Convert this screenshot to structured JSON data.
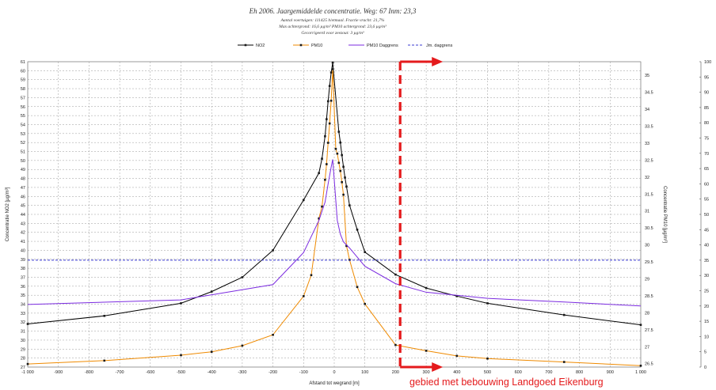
{
  "chart_data": {
    "type": "line",
    "title": "Eh 2006. Jaargemiddelde concentratie. Weg: 67 Inm: 23,3",
    "subtitle_lines": [
      "Aantal voertuigen: 111425 h/etmaal. Fractie vracht: 21,7%",
      "Max achtergrond: 16,6 µg/m³ PM10 achtergrond: 23,6 µg/m³",
      "Gecorrigeerd voor zeezout: 3 µg/m³"
    ],
    "xlabel": "Afstand tot wegrand [m]",
    "ylabel_left": "Concentratie NO2 [µg/m³]",
    "ylabel_right": "Concentratie PM10 [µg/m³]",
    "xlim": [
      -1000,
      1000
    ],
    "ylim_left": [
      27,
      61
    ],
    "ylim_right": [
      26.4,
      35.4
    ],
    "ylim_far_right": [
      0,
      100
    ],
    "x_ticks": [
      "-1 000",
      "-900",
      "-800",
      "-700",
      "-600",
      "-500",
      "-400",
      "-300",
      "-200",
      "-100",
      "0",
      "100",
      "200",
      "300",
      "400",
      "500",
      "600",
      "700",
      "800",
      "900",
      "1 000"
    ],
    "y_ticks_left": [
      "61",
      "60",
      "59",
      "58",
      "57",
      "56",
      "55",
      "54",
      "53",
      "52",
      "51",
      "50",
      "49",
      "48",
      "47",
      "46",
      "45",
      "44",
      "43",
      "42",
      "41",
      "40",
      "39",
      "38",
      "37",
      "36",
      "35",
      "34",
      "33",
      "32",
      "31",
      "30",
      "29",
      "28",
      "27"
    ],
    "y_ticks_right": [
      "35",
      "34.5",
      "34",
      "33.5",
      "33",
      "32.5",
      "32",
      "31.5",
      "31",
      "30.5",
      "30",
      "29.5",
      "29",
      "28.5",
      "28",
      "27.5",
      "27",
      "26.5"
    ],
    "y_ticks_far_right": [
      "100",
      "95",
      "90",
      "85",
      "80",
      "75",
      "70",
      "65",
      "60",
      "55",
      "50",
      "45",
      "40",
      "35",
      "30",
      "25",
      "20",
      "15",
      "10",
      "5",
      "0"
    ],
    "legend": [
      "NO2",
      "PM10",
      "PM10 Daggrens",
      "Jm. daggrens"
    ],
    "legend_position": "top-center",
    "grid": true,
    "colors": {
      "NO2": "#000000",
      "PM10": "#ef8a00",
      "PM10 Daggrens": "#7b2be0",
      "Jm. daggrens": "#3b3bd0",
      "annotation": "#e41a1c"
    },
    "series": [
      {
        "name": "NO2",
        "axis": "left",
        "x": [
          -1000,
          -750,
          -500,
          -400,
          -300,
          -200,
          -100,
          -50,
          -40,
          -30,
          -25,
          -20,
          -15,
          -10,
          -5,
          15,
          20,
          25,
          30,
          35,
          40,
          50,
          75,
          100,
          200,
          300,
          400,
          500,
          750,
          1000
        ],
        "y": [
          31.8,
          32.7,
          34.1,
          35.4,
          37.0,
          40.0,
          45.6,
          48.6,
          50.2,
          52.7,
          54.6,
          56.6,
          58.3,
          59.8,
          60.9,
          53.2,
          52.0,
          50.6,
          49.3,
          48.1,
          47.1,
          45.0,
          42.3,
          39.8,
          37.3,
          35.8,
          34.9,
          34.1,
          32.8,
          31.7
        ]
      },
      {
        "name": "PM10",
        "axis": "right",
        "x": [
          -1000,
          -750,
          -500,
          -400,
          -300,
          -200,
          -100,
          -75,
          -50,
          -40,
          -30,
          -25,
          -20,
          -15,
          -10,
          -5,
          5,
          10,
          15,
          20,
          25,
          30,
          40,
          50,
          75,
          100,
          200,
          300,
          400,
          500,
          750,
          1000
        ],
        "y": [
          26.49,
          26.59,
          26.75,
          26.85,
          27.03,
          27.35,
          28.49,
          29.11,
          30.78,
          31.13,
          31.92,
          32.38,
          33.01,
          33.58,
          34.25,
          35.18,
          32.83,
          32.69,
          32.42,
          32.18,
          31.85,
          31.48,
          29.97,
          29.56,
          28.76,
          28.26,
          27.05,
          26.88,
          26.73,
          26.65,
          26.55,
          26.44
        ]
      },
      {
        "name": "PM10 Daggrens",
        "axis": "far-right",
        "x": [
          -1000,
          -500,
          -200,
          -100,
          -50,
          -30,
          -20,
          -10,
          -5,
          10,
          20,
          30,
          50,
          100,
          200,
          300,
          500,
          750,
          1000
        ],
        "y": [
          20.5,
          22.0,
          27.0,
          37.5,
          48.0,
          54.0,
          60.0,
          65.5,
          68.0,
          48.0,
          43.5,
          41.0,
          39.0,
          33.0,
          27.3,
          24.5,
          22.5,
          21.3,
          20.0
        ]
      },
      {
        "name": "Jm. daggrens",
        "axis": "far-right",
        "x": [
          -1000,
          1000
        ],
        "y": [
          35.0,
          35.0
        ]
      }
    ],
    "annotation": {
      "text": "gebied met bebouwing Landgoed Eikenburg",
      "boundary_x": 215
    }
  }
}
